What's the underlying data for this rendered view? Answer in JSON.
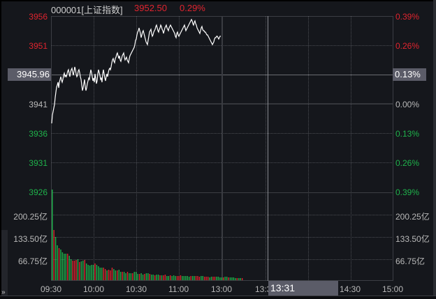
{
  "header": {
    "code_name": "000001[上证指数]",
    "price": "3952.50",
    "change_pct": "0.29%"
  },
  "crosshair": {
    "price_label": "3945.96",
    "pct_label": "0.13%",
    "time_label": "13:31"
  },
  "left_axis": {
    "price_ticks": [
      {
        "label": "3956",
        "color": "red"
      },
      {
        "label": "3951",
        "color": "red"
      },
      {
        "label": "3941",
        "color": "gray"
      },
      {
        "label": "3936",
        "color": "green"
      },
      {
        "label": "3931",
        "color": "green"
      },
      {
        "label": "3926",
        "color": "green"
      }
    ],
    "volume_ticks": [
      "200.25亿",
      "133.50亿",
      "66.75亿"
    ]
  },
  "right_axis": {
    "pct_ticks": [
      {
        "label": "0.39%",
        "color": "red"
      },
      {
        "label": "0.26%",
        "color": "red"
      },
      {
        "label": "0.00%",
        "color": "gray"
      },
      {
        "label": "0.13%",
        "color": "green"
      },
      {
        "label": "0.26%",
        "color": "green"
      },
      {
        "label": "0.39%",
        "color": "green"
      }
    ],
    "volume_ticks": [
      "200.25亿",
      "133.50亿",
      "66.75亿"
    ]
  },
  "time_axis": [
    "09:30",
    "10:00",
    "10:30",
    "11:00",
    "13:00",
    "13:3",
    "14:30",
    "15:00"
  ],
  "colors": {
    "up": "#e0242f",
    "down": "#1fb24b",
    "line": "#ffffff",
    "background": "#15171c",
    "highlight_box": "#5b5c68"
  },
  "chart_data": {
    "type": "line",
    "title": "000001[上证指数] 3952.50 0.29%",
    "xlabel": "",
    "ylabel": "",
    "x_range": [
      "09:30",
      "15:00"
    ],
    "ylim": [
      3926,
      3956
    ],
    "prev_close": 3941,
    "grid": true,
    "series": [
      {
        "name": "price",
        "x": [
          "09:30",
          "09:35",
          "09:40",
          "09:45",
          "09:50",
          "09:55",
          "10:00",
          "10:05",
          "10:10",
          "10:15",
          "10:20",
          "10:25",
          "10:30",
          "10:35",
          "10:40",
          "10:45",
          "10:50",
          "10:55",
          "11:00",
          "11:05",
          "11:10",
          "11:15",
          "11:20",
          "11:25",
          "11:30/13:00",
          "13:01"
        ],
        "values": [
          3938.5,
          3944.8,
          3945.9,
          3946.4,
          3944.8,
          3946.3,
          3945.2,
          3945.4,
          3946.8,
          3948.2,
          3948.0,
          3951.0,
          3952.8,
          3953.9,
          3953.5,
          3954.5,
          3953.8,
          3954.6,
          3953.4,
          3955.2,
          3954.6,
          3953.8,
          3953.2,
          3952.2,
          3952.5,
          3952.5
        ]
      }
    ],
    "volume": {
      "unit": "亿",
      "ticks": [
        66.75,
        133.5,
        200.25
      ],
      "note": "per-minute turnover bars, red=up, green=down; first bar ~300亿, decaying to ~10亿 by 13:00"
    }
  }
}
